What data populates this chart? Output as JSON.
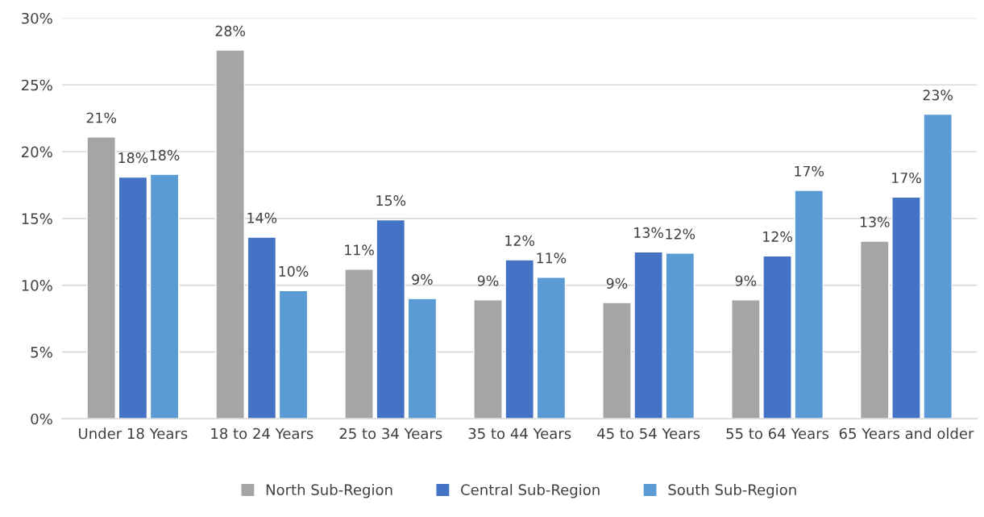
{
  "chart_data": {
    "type": "bar",
    "categories": [
      "Under 18 Years",
      "18 to 24 Years",
      "25 to 34 Years",
      "35 to 44 Years",
      "45 to 54 Years",
      "55 to 64 Years",
      "65 Years and older"
    ],
    "series": [
      {
        "name": "North Sub-Region",
        "color": "#a5a5a5",
        "values": [
          21.1,
          27.6,
          11.2,
          8.9,
          8.7,
          8.9,
          13.3
        ],
        "value_labels": [
          "21%",
          "28%",
          "11%",
          "9%",
          "9%",
          "9%",
          "13%"
        ]
      },
      {
        "name": "Central Sub-Region",
        "color": "#4472c4",
        "values": [
          18.1,
          13.6,
          14.9,
          11.9,
          12.5,
          12.2,
          16.6
        ],
        "value_labels": [
          "18%",
          "14%",
          "15%",
          "12%",
          "13%",
          "12%",
          "17%"
        ]
      },
      {
        "name": "South Sub-Region",
        "color": "#5b9bd5",
        "values": [
          18.3,
          9.6,
          9.0,
          10.6,
          12.4,
          17.1,
          22.8
        ],
        "value_labels": [
          "18%",
          "10%",
          "9%",
          "11%",
          "12%",
          "17%",
          "23%"
        ]
      }
    ],
    "ylim": [
      0,
      30
    ],
    "yticks": [
      {
        "value": 0,
        "label": "0%"
      },
      {
        "value": 5,
        "label": "5%"
      },
      {
        "value": 10,
        "label": "10%"
      },
      {
        "value": 15,
        "label": "15%"
      },
      {
        "value": 20,
        "label": "20%"
      },
      {
        "value": 25,
        "label": "25%"
      },
      {
        "value": 30,
        "label": "30%"
      }
    ],
    "grid": "y",
    "legend": "bottom"
  }
}
